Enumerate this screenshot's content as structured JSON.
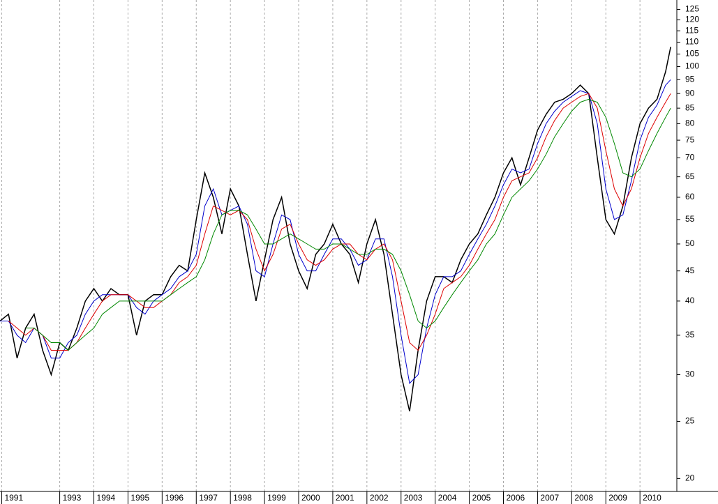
{
  "chart_data": {
    "type": "line",
    "log_scale": true,
    "grid": true,
    "x": [
      1991.25,
      1991.5,
      1991.75,
      1992,
      1992.25,
      1992.5,
      1992.75,
      1993,
      1993.25,
      1993.5,
      1993.75,
      1994,
      1994.25,
      1994.5,
      1994.75,
      1995,
      1995.25,
      1995.5,
      1995.75,
      1996,
      1996.25,
      1996.5,
      1996.75,
      1997,
      1997.25,
      1997.5,
      1997.75,
      1998,
      1998.25,
      1998.5,
      1998.75,
      1999,
      1999.25,
      1999.5,
      1999.75,
      2000,
      2000.25,
      2000.5,
      2000.75,
      2001,
      2001.25,
      2001.5,
      2001.75,
      2002,
      2002.25,
      2002.5,
      2002.75,
      2003,
      2003.25,
      2003.5,
      2003.75,
      2004,
      2004.25,
      2004.5,
      2004.75,
      2005,
      2005.25,
      2005.5,
      2005.75,
      2006,
      2006.25,
      2006.5,
      2006.75,
      2007,
      2007.25,
      2007.5,
      2007.75,
      2008,
      2008.25,
      2008.5,
      2008.75,
      2009,
      2009.25,
      2009.5,
      2009.75,
      2010,
      2010.25,
      2010.5,
      2010.75,
      2010.9
    ],
    "series": [
      {
        "color": "#000000",
        "values": [
          37,
          38,
          32,
          36,
          38,
          33,
          30,
          34,
          33,
          36,
          40,
          42,
          40,
          42,
          41,
          41,
          35,
          40,
          41,
          41,
          44,
          46,
          45,
          55,
          66,
          60,
          52,
          62,
          58,
          48,
          40,
          47,
          55,
          60,
          50,
          45,
          42,
          48,
          50,
          54,
          50,
          48,
          43,
          50,
          55,
          48,
          38,
          30,
          26,
          33,
          40,
          44,
          44,
          43,
          47,
          50,
          52,
          56,
          60,
          66,
          70,
          63,
          70,
          78,
          83,
          87,
          88,
          90,
          93,
          90,
          70,
          55,
          52,
          58,
          70,
          80,
          85,
          88,
          98,
          108
        ]
      },
      {
        "color": "#0000cc",
        "values": [
          37,
          37,
          35,
          34,
          36,
          35,
          32,
          32,
          34,
          35,
          38,
          40,
          41,
          41,
          41,
          41,
          39,
          38,
          40,
          41,
          42,
          44,
          45,
          48,
          58,
          62,
          56,
          57,
          58,
          54,
          45,
          44,
          50,
          56,
          55,
          48,
          45,
          45,
          48,
          51,
          51,
          49,
          46,
          47,
          51,
          51,
          44,
          35,
          29,
          30,
          36,
          41,
          44,
          44,
          45,
          48,
          51,
          54,
          58,
          63,
          67,
          66,
          67,
          74,
          80,
          84,
          87,
          89,
          91,
          90,
          80,
          62,
          55,
          56,
          64,
          75,
          82,
          86,
          93,
          95
        ]
      },
      {
        "color": "#dd0000",
        "values": [
          null,
          37,
          36,
          35,
          36,
          35,
          33,
          33,
          33,
          34,
          36,
          38,
          40,
          41,
          41,
          41,
          40,
          39,
          39,
          40,
          41,
          43,
          44,
          46,
          52,
          58,
          57,
          56,
          57,
          55,
          49,
          45,
          48,
          53,
          54,
          50,
          47,
          46,
          47,
          49,
          50,
          50,
          48,
          47,
          49,
          50,
          47,
          40,
          34,
          33,
          35,
          38,
          42,
          43,
          44,
          46,
          49,
          52,
          55,
          60,
          64,
          65,
          66,
          70,
          76,
          81,
          85,
          87,
          89,
          90,
          85,
          72,
          62,
          58,
          62,
          70,
          77,
          82,
          87,
          90
        ]
      },
      {
        "color": "#008800",
        "values": [
          null,
          null,
          null,
          36,
          36,
          35,
          34,
          34,
          33,
          34,
          35,
          36,
          38,
          39,
          40,
          40,
          40,
          40,
          40,
          40,
          41,
          42,
          43,
          44,
          47,
          52,
          56,
          57,
          57,
          56,
          53,
          50,
          50,
          51,
          52,
          51,
          50,
          49,
          49,
          50,
          50,
          49,
          48,
          48,
          49,
          49,
          48,
          45,
          41,
          37,
          36,
          37,
          39,
          41,
          43,
          45,
          47,
          50,
          52,
          56,
          60,
          62,
          64,
          67,
          71,
          76,
          80,
          84,
          87,
          88,
          87,
          82,
          74,
          66,
          65,
          67,
          72,
          77,
          82,
          85
        ]
      }
    ],
    "xlim": [
      1991.25,
      2011.08
    ],
    "xticks": [
      {
        "value": 1991.3,
        "label": "1991"
      },
      1993,
      1994,
      1995,
      1996,
      1997,
      1998,
      1999,
      2000,
      2001,
      2002,
      2003,
      2004,
      2005,
      2006,
      2007,
      2008,
      2009,
      2010
    ],
    "ylim": [
      18.1,
      129.7
    ],
    "yticks": [
      20,
      25,
      30,
      35,
      40,
      45,
      50,
      55,
      60,
      65,
      70,
      75,
      80,
      85,
      90,
      95,
      100,
      105,
      110,
      115,
      120,
      125
    ]
  }
}
